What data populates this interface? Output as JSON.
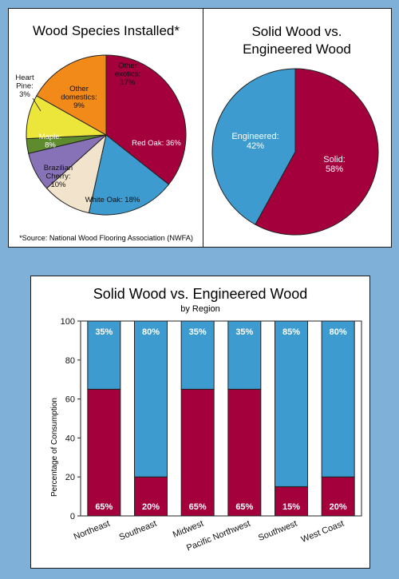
{
  "colors": {
    "background": "#7fb1d8",
    "red": "#a3003c",
    "blue": "#3e9bcf",
    "orange": "#f28a1a",
    "yellow": "#ece53a",
    "green": "#5f8b2f",
    "purple": "#8771b7",
    "beige": "#f2e4cc"
  },
  "chart_data": [
    {
      "type": "pie",
      "title": "Wood Species Installed*",
      "slices": [
        {
          "label": "Red Oak: 36%",
          "value": 36
        },
        {
          "label": "White Oak: 18%",
          "value": 18
        },
        {
          "label": "Brazilian Cherry: 10%",
          "value": 10
        },
        {
          "label": "Maple: 8%",
          "value": 8
        },
        {
          "label": "Heart Pine: 3%",
          "value": 3
        },
        {
          "label": "Other domestics: 9%",
          "value": 9
        },
        {
          "label": "Other exotics: 17%",
          "value": 17
        }
      ],
      "footnote": "*Source: National Wood Flooring Association (NWFA)"
    },
    {
      "type": "pie",
      "title": "Solid Wood vs. Engineered Wood",
      "slices": [
        {
          "label": "Solid: 58%",
          "value": 58
        },
        {
          "label": "Engineered: 42%",
          "value": 42
        }
      ]
    },
    {
      "type": "bar",
      "title": "Solid Wood vs. Engineered Wood",
      "subtitle": "by Region",
      "ylabel": "Percentage of Consumption",
      "ylim": [
        0,
        100
      ],
      "yticks": [
        0,
        20,
        40,
        60,
        80,
        100
      ],
      "categories": [
        "Northeast",
        "Southeast",
        "Midwest",
        "Pacific Northwest",
        "Southwest",
        "West Coast"
      ],
      "series": [
        {
          "values": [
            65,
            20,
            65,
            65,
            15,
            20
          ],
          "labels": [
            "65%",
            "20%",
            "65%",
            "65%",
            "15%",
            "20%"
          ]
        },
        {
          "values": [
            35,
            80,
            35,
            35,
            85,
            80
          ],
          "labels": [
            "35%",
            "80%",
            "35%",
            "35%",
            "85%",
            "80%"
          ]
        }
      ]
    }
  ]
}
